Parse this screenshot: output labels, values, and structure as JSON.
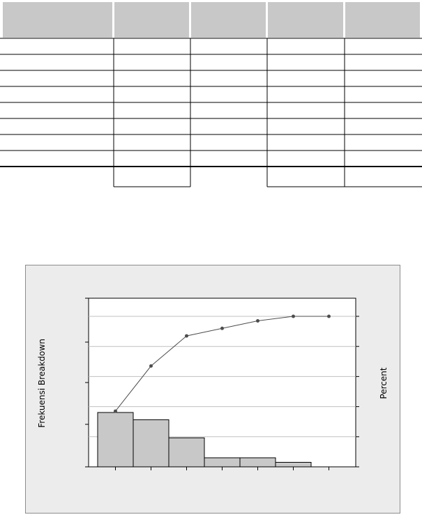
{
  "table": {
    "header_fill": "#c8c8c8",
    "line_color": "#000000",
    "header_row_count": 1,
    "body_row_count": 8,
    "total_row_count": 1,
    "column_count": 5
  },
  "chart_data": {
    "type": "bar",
    "ylabel": "Frekuensi Breakdown",
    "y2label": "Percent",
    "categories": [
      "",
      "",
      "",
      "",
      "",
      "",
      ""
    ],
    "series": [
      {
        "values": [
          30,
          26,
          16,
          5,
          5,
          2.5,
          0
        ]
      },
      {
        "values": [
          37,
          67,
          87,
          92,
          97,
          100,
          100
        ]
      }
    ],
    "y2lim": [
      0,
      100
    ],
    "grid": true,
    "colors": {
      "bars": "#c8c8c8",
      "bar_edge": "#000000",
      "line": "#4d4d4d",
      "marker": "#4d4d4d",
      "plot_bg": "#ffffff",
      "frame_bg": "#ececec",
      "grid": "#c0c0c0"
    }
  }
}
